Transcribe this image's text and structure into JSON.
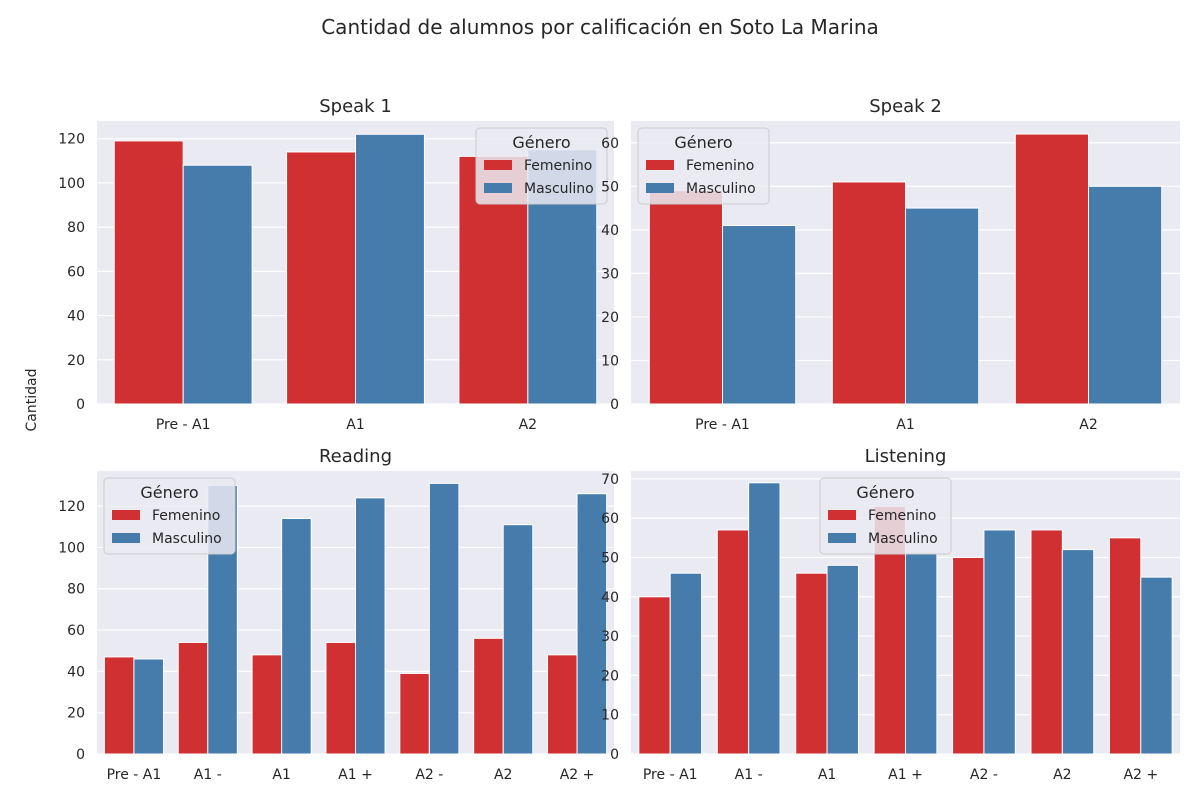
{
  "figure": {
    "suptitle": "Cantidad de alumnos por calificación en Soto La Marina",
    "ylabel": "Cantidad"
  },
  "colors": {
    "Femenino": "#d13033",
    "Masculino": "#457cac",
    "background": "#eaeaf2",
    "grid": "#ffffff"
  },
  "chart_data": [
    {
      "type": "bar",
      "title": "Speak 1",
      "categories": [
        "Pre - A1",
        "A1",
        "A2"
      ],
      "series": [
        {
          "name": "Femenino",
          "values": [
            119,
            114,
            112
          ]
        },
        {
          "name": "Masculino",
          "values": [
            108,
            122,
            115
          ]
        }
      ],
      "ylim": [
        0,
        128
      ],
      "yticks": [
        0,
        20,
        40,
        60,
        80,
        100,
        120
      ],
      "legend": {
        "title": "Género",
        "placement": "upper-right"
      }
    },
    {
      "type": "bar",
      "title": "Speak 2",
      "categories": [
        "Pre - A1",
        "A1",
        "A2"
      ],
      "series": [
        {
          "name": "Femenino",
          "values": [
            49,
            51,
            62
          ]
        },
        {
          "name": "Masculino",
          "values": [
            41,
            45,
            50
          ]
        }
      ],
      "ylim": [
        0,
        65
      ],
      "yticks": [
        0,
        10,
        20,
        30,
        40,
        50,
        60
      ],
      "legend": {
        "title": "Género",
        "placement": "upper-left"
      }
    },
    {
      "type": "bar",
      "title": "Reading",
      "categories": [
        "Pre - A1",
        "A1 -",
        "A1",
        "A1 +",
        "A2 -",
        "A2",
        "A2 +"
      ],
      "series": [
        {
          "name": "Femenino",
          "values": [
            47,
            54,
            48,
            54,
            39,
            56,
            48
          ]
        },
        {
          "name": "Masculino",
          "values": [
            46,
            130,
            114,
            124,
            131,
            111,
            126
          ]
        }
      ],
      "ylim": [
        0,
        137
      ],
      "yticks": [
        0,
        20,
        40,
        60,
        80,
        100,
        120
      ],
      "legend": {
        "title": "Género",
        "placement": "upper-left"
      }
    },
    {
      "type": "bar",
      "title": "Listening",
      "categories": [
        "Pre - A1",
        "A1 -",
        "A1",
        "A1 +",
        "A2 -",
        "A2",
        "A2 +"
      ],
      "series": [
        {
          "name": "Femenino",
          "values": [
            40,
            57,
            46,
            63,
            50,
            57,
            55
          ]
        },
        {
          "name": "Masculino",
          "values": [
            46,
            69,
            48,
            51,
            57,
            52,
            45
          ]
        }
      ],
      "ylim": [
        0,
        72
      ],
      "yticks": [
        0,
        10,
        20,
        30,
        40,
        50,
        60,
        70
      ],
      "legend": {
        "title": "Género",
        "placement": "upper-center"
      }
    }
  ]
}
